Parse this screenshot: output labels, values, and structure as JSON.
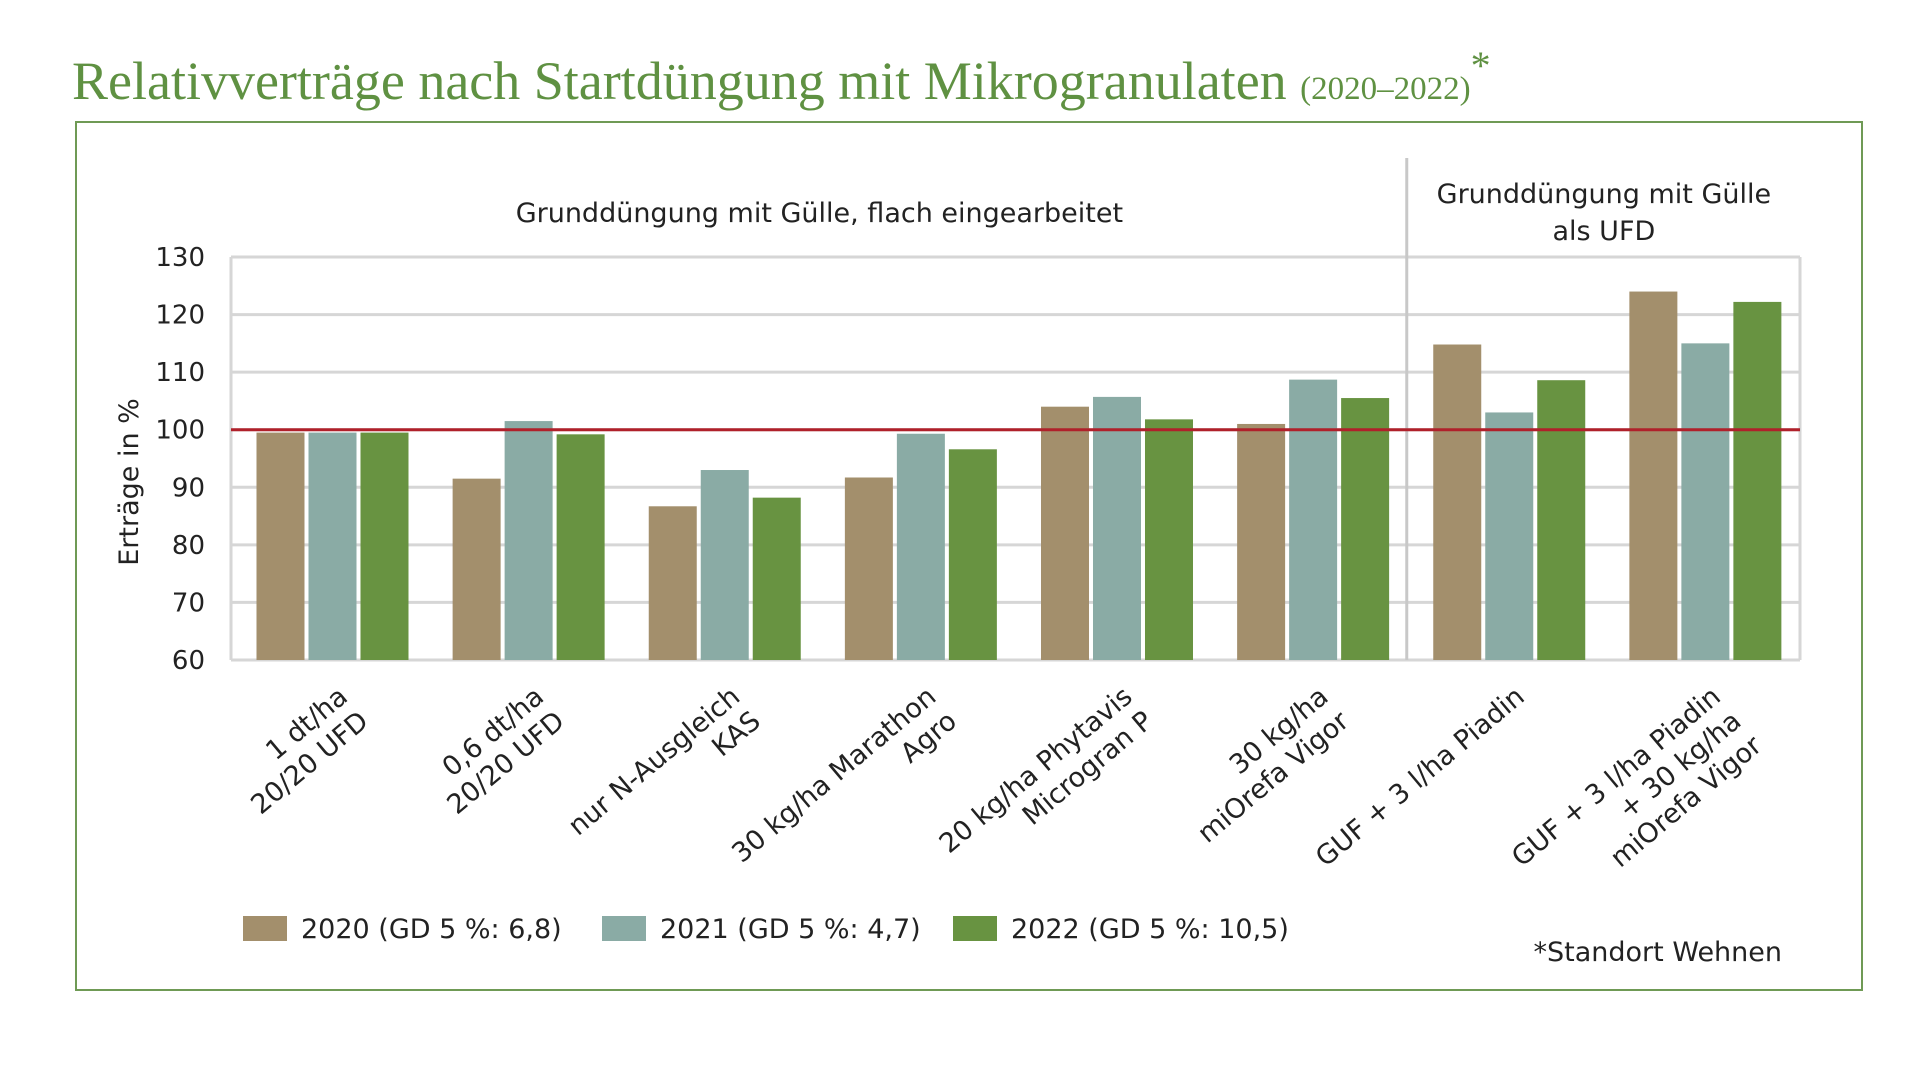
{
  "title": {
    "main": "Relativverträge nach Startdüngung mit Mikrogranulaten",
    "years": "(2020–2022)",
    "star": "*"
  },
  "footnote": "*Standort Wehnen",
  "colors": {
    "title": "#5f9142",
    "frame": "#6f9a55",
    "reference_line": "#b0202a",
    "s2020": "#a38f6c",
    "s2021": "#8aaba5",
    "s2022": "#689341"
  },
  "chart_data": {
    "type": "bar",
    "ylabel": "Erträge in %",
    "ylim": [
      60,
      130
    ],
    "yticks": [
      60,
      70,
      80,
      90,
      100,
      110,
      120,
      130
    ],
    "grid": true,
    "reference_line": 100,
    "groups": [
      {
        "label": "Grunddüngung mit Gülle, flach eingearbeitet",
        "from": 0,
        "to": 5
      },
      {
        "label_lines": [
          "Grunddüngung mit Gülle",
          "als UFD"
        ],
        "from": 6,
        "to": 7
      }
    ],
    "categories": [
      [
        "1 dt/ha",
        "20/20 UFD"
      ],
      [
        "0,6 dt/ha",
        "20/20 UFD"
      ],
      [
        "nur N-Ausgleich",
        "KAS"
      ],
      [
        "30 kg/ha Marathon",
        "Agro"
      ],
      [
        "20 kg/ha Phytavis",
        "Microgran P"
      ],
      [
        "30 kg/ha",
        "miOrefa Vigor"
      ],
      [
        "GUF + 3 l/ha Piadin"
      ],
      [
        "GUF + 3 l/ha Piadin",
        "+ 30 kg/ha",
        "miOrefa Vigor"
      ]
    ],
    "series": [
      {
        "name": "2020 (GD 5 %: 6,8)",
        "color": "#a38f6c",
        "values": [
          99.5,
          91.5,
          86.7,
          91.7,
          104,
          101,
          114.8,
          124
        ]
      },
      {
        "name": "2021 (GD 5 %: 4,7)",
        "color": "#8aaba5",
        "values": [
          99.5,
          101.5,
          93,
          99.3,
          105.7,
          108.7,
          103,
          115
        ]
      },
      {
        "name": "2022 (GD 5 %: 10,5)",
        "color": "#689341",
        "values": [
          99.5,
          99.2,
          88.2,
          96.6,
          101.8,
          105.5,
          108.6,
          122.2
        ]
      }
    ],
    "legend_position": "bottom-left"
  }
}
